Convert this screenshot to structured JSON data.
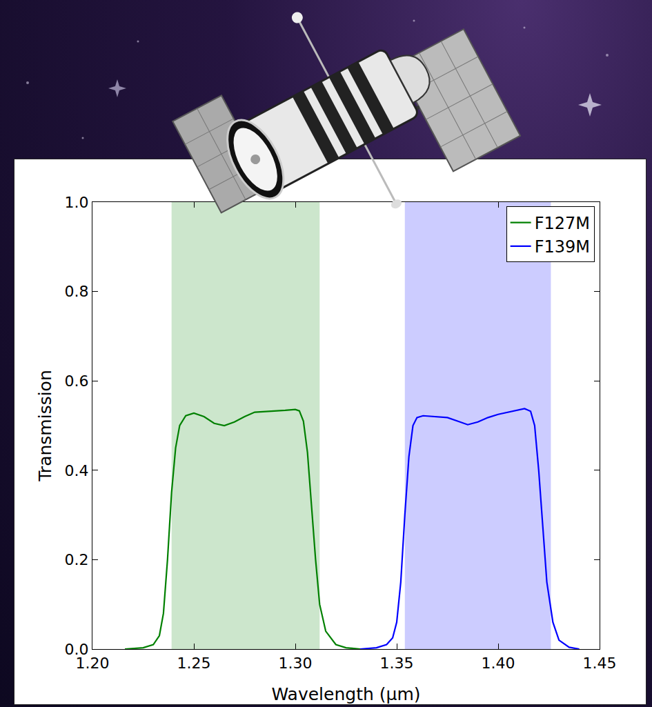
{
  "chart_data": {
    "type": "line",
    "x_label": "Wavelength (μm)",
    "y_label": "Transmission",
    "xlim": [
      1.2,
      1.45
    ],
    "xticks": [
      {
        "value": 1.2,
        "label": "1.20"
      },
      1.25,
      {
        "value": 1.3,
        "label": "1.30"
      },
      1.35,
      {
        "value": 1.4,
        "label": "1.40"
      },
      1.45
    ],
    "ylim": [
      0,
      1
    ],
    "yticks": [
      {
        "value": 0,
        "label": "0.0"
      },
      0.2,
      0.4,
      0.6,
      0.8,
      {
        "value": 1,
        "label": "1.0"
      }
    ],
    "grid": false,
    "legend": "upper right",
    "series": [
      {
        "name": "F127M",
        "color": "green",
        "band": [
          1.239,
          1.312
        ],
        "x": [
          1.216,
          1.225,
          1.23,
          1.233,
          1.235,
          1.237,
          1.239,
          1.241,
          1.243,
          1.246,
          1.25,
          1.255,
          1.26,
          1.265,
          1.27,
          1.275,
          1.28,
          1.285,
          1.29,
          1.295,
          1.3,
          1.302,
          1.304,
          1.306,
          1.308,
          1.31,
          1.312,
          1.315,
          1.32,
          1.325,
          1.332
        ],
        "values": [
          0,
          0.003,
          0.01,
          0.03,
          0.08,
          0.2,
          0.35,
          0.45,
          0.5,
          0.522,
          0.528,
          0.52,
          0.505,
          0.5,
          0.508,
          0.52,
          0.53,
          0.531,
          0.532,
          0.534,
          0.536,
          0.533,
          0.51,
          0.44,
          0.32,
          0.2,
          0.1,
          0.04,
          0.01,
          0.003,
          0
        ]
      },
      {
        "name": "F139M",
        "color": "blue",
        "band": [
          1.354,
          1.426
        ],
        "x": [
          1.332,
          1.34,
          1.345,
          1.348,
          1.35,
          1.352,
          1.354,
          1.356,
          1.358,
          1.36,
          1.363,
          1.368,
          1.375,
          1.38,
          1.385,
          1.39,
          1.395,
          1.4,
          1.405,
          1.41,
          1.413,
          1.416,
          1.418,
          1.42,
          1.422,
          1.424,
          1.427,
          1.43,
          1.435,
          1.44
        ],
        "values": [
          0,
          0.003,
          0.01,
          0.025,
          0.06,
          0.15,
          0.3,
          0.43,
          0.5,
          0.518,
          0.522,
          0.52,
          0.518,
          0.51,
          0.502,
          0.508,
          0.518,
          0.525,
          0.53,
          0.535,
          0.538,
          0.532,
          0.5,
          0.4,
          0.28,
          0.15,
          0.06,
          0.02,
          0.004,
          0
        ]
      }
    ]
  }
}
